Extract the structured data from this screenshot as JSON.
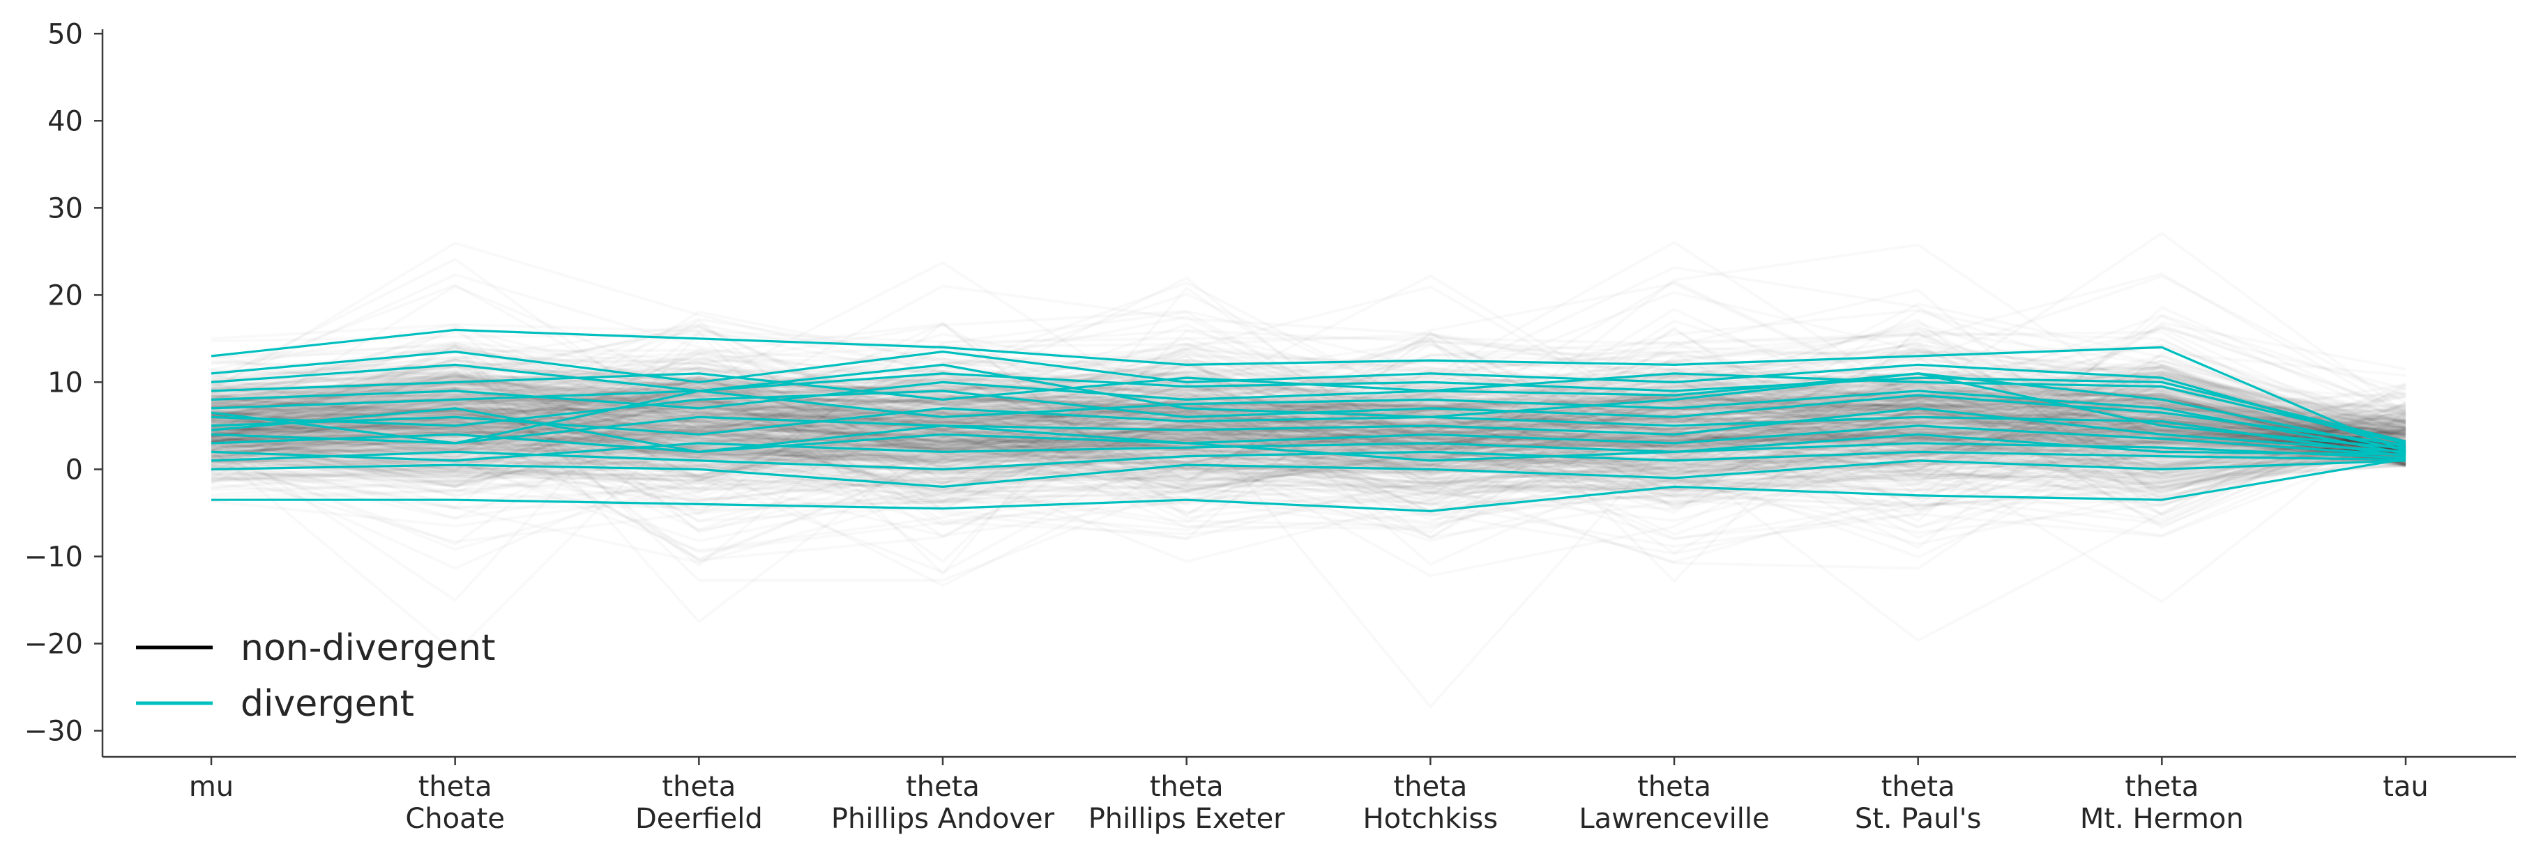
{
  "chart_data": {
    "type": "line",
    "subtype": "parallel-coordinates",
    "title": "",
    "xlabel": "",
    "ylabel": "",
    "ylim": [
      -33,
      50.5
    ],
    "yticks": [
      -30,
      -20,
      -10,
      0,
      10,
      20,
      30,
      40,
      50
    ],
    "ytick_labels": [
      "−30",
      "−20",
      "−10",
      "0",
      "10",
      "20",
      "30",
      "40",
      "50"
    ],
    "categories": [
      {
        "line1": "mu",
        "line2": ""
      },
      {
        "line1": "theta",
        "line2": "Choate"
      },
      {
        "line1": "theta",
        "line2": "Deerfield"
      },
      {
        "line1": "theta",
        "line2": "Phillips Andover"
      },
      {
        "line1": "theta",
        "line2": "Phillips Exeter"
      },
      {
        "line1": "theta",
        "line2": "Hotchkiss"
      },
      {
        "line1": "theta",
        "line2": "Lawrenceville"
      },
      {
        "line1": "theta",
        "line2": "St. Paul's"
      },
      {
        "line1": "theta",
        "line2": "Mt. Hermon"
      },
      {
        "line1": "tau",
        "line2": ""
      }
    ],
    "grid": false,
    "legend": {
      "placement": "lower-left",
      "entries": [
        {
          "label": "non-divergent",
          "color": "#000000"
        },
        {
          "label": "divergent",
          "color": "#00bfbf"
        }
      ]
    },
    "series": [
      {
        "label_ref": "non-divergent",
        "color": "#000000",
        "alpha": 0.025,
        "n_draws": 500,
        "summary_centers": [
          4.5,
          6.2,
          5.0,
          3.9,
          4.8,
          3.7,
          4.0,
          5.8,
          5.0,
          3.6
        ]
      },
      {
        "label_ref": "divergent",
        "color": "#00bfbf",
        "alpha": 1.0,
        "draws": [
          [
            13,
            16,
            15,
            14,
            12,
            12.5,
            12,
            13,
            14,
            2
          ],
          [
            -3.5,
            -3.5,
            -4,
            -4.5,
            -3.5,
            -4.8,
            -2,
            -3,
            -3.5,
            1.2
          ],
          [
            11,
            13.5,
            10,
            13.5,
            10,
            11,
            10,
            12,
            10.5,
            2.5
          ],
          [
            9,
            10,
            11,
            8,
            10.5,
            9,
            11,
            10,
            9.5,
            3
          ],
          [
            8,
            9,
            7,
            10,
            8,
            9,
            8.5,
            11,
            8,
            2.2
          ],
          [
            7,
            8,
            9,
            6,
            7.5,
            8,
            7,
            9,
            7,
            1.8
          ],
          [
            6,
            5,
            8,
            9,
            6,
            7,
            6,
            8.5,
            6.5,
            2.8
          ],
          [
            5,
            6,
            4,
            7,
            5.5,
            6,
            5,
            6,
            5.5,
            1.5
          ],
          [
            4,
            3,
            6,
            5,
            4.5,
            5,
            4,
            7,
            4,
            2
          ],
          [
            3,
            4,
            2,
            4,
            3,
            4,
            3,
            5,
            3.5,
            1.6
          ],
          [
            2,
            1,
            3,
            2,
            2.5,
            3,
            2,
            3,
            2.5,
            1.3
          ],
          [
            1,
            2,
            1,
            0,
            1.5,
            2,
            1,
            2,
            1.5,
            1.1
          ],
          [
            0,
            0.5,
            0,
            -2,
            0.5,
            0,
            -1,
            1,
            0,
            1.0
          ],
          [
            10,
            12,
            9,
            11,
            9.5,
            10,
            9,
            10.5,
            10,
            3.2
          ],
          [
            6.5,
            3,
            9,
            12,
            7,
            6,
            8,
            11,
            5,
            2.4
          ],
          [
            4.5,
            7,
            2,
            5,
            3,
            1,
            2,
            4,
            2,
            1.7
          ]
        ]
      }
    ]
  }
}
